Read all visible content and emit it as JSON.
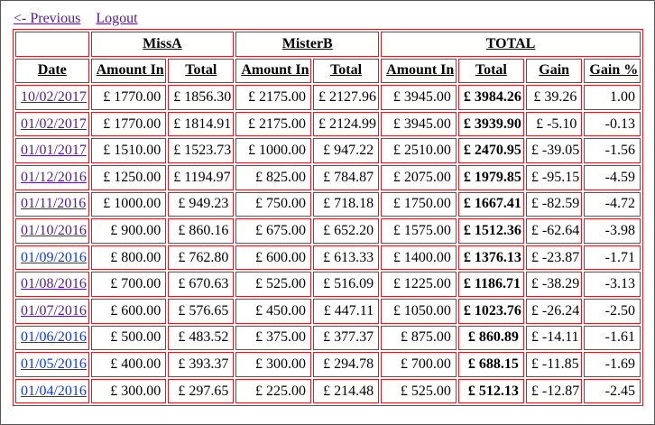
{
  "nav": {
    "previous": "<- Previous",
    "logout": "Logout"
  },
  "groups": {
    "missa": "MissA",
    "misterb": "MisterB",
    "total": "TOTAL"
  },
  "headers": {
    "date": "Date",
    "missa_amount": "Amount In",
    "missa_total": "Total",
    "misterb_amount": "Amount In",
    "misterb_total": "Total",
    "total_amount": "Amount In",
    "total_total": "Total",
    "gain": "Gain",
    "gain_pct": "Gain %"
  },
  "colors": {
    "border": "#e0181f",
    "link_visited": "#551a8b",
    "link_unvisited": "#0b3adf"
  },
  "rows": [
    {
      "date": "10/02/2017",
      "visited": true,
      "a_in": "£ 1770.00",
      "a_tot": "£ 1856.30",
      "b_in": "£ 2175.00",
      "b_tot": "£ 2127.96",
      "t_in": "£ 3945.00",
      "t_tot": "£ 3984.26",
      "gain": "£ 39.26",
      "pct": "1.00"
    },
    {
      "date": "01/02/2017",
      "visited": true,
      "a_in": "£ 1770.00",
      "a_tot": "£ 1814.91",
      "b_in": "£ 2175.00",
      "b_tot": "£ 2124.99",
      "t_in": "£ 3945.00",
      "t_tot": "£ 3939.90",
      "gain": "£ -5.10",
      "pct": "-0.13"
    },
    {
      "date": "01/01/2017",
      "visited": true,
      "a_in": "£ 1510.00",
      "a_tot": "£ 1523.73",
      "b_in": "£ 1000.00",
      "b_tot": "£ 947.22",
      "t_in": "£ 2510.00",
      "t_tot": "£ 2470.95",
      "gain": "£ -39.05",
      "pct": "-1.56"
    },
    {
      "date": "01/12/2016",
      "visited": true,
      "a_in": "£ 1250.00",
      "a_tot": "£ 1194.97",
      "b_in": "£ 825.00",
      "b_tot": "£ 784.87",
      "t_in": "£ 2075.00",
      "t_tot": "£ 1979.85",
      "gain": "£ -95.15",
      "pct": "-4.59"
    },
    {
      "date": "01/11/2016",
      "visited": true,
      "a_in": "£ 1000.00",
      "a_tot": "£ 949.23",
      "b_in": "£ 750.00",
      "b_tot": "£ 718.18",
      "t_in": "£ 1750.00",
      "t_tot": "£ 1667.41",
      "gain": "£ -82.59",
      "pct": "-4.72"
    },
    {
      "date": "01/10/2016",
      "visited": true,
      "a_in": "£ 900.00",
      "a_tot": "£ 860.16",
      "b_in": "£ 675.00",
      "b_tot": "£ 652.20",
      "t_in": "£ 1575.00",
      "t_tot": "£ 1512.36",
      "gain": "£ -62.64",
      "pct": "-3.98"
    },
    {
      "date": "01/09/2016",
      "visited": false,
      "a_in": "£ 800.00",
      "a_tot": "£ 762.80",
      "b_in": "£ 600.00",
      "b_tot": "£ 613.33",
      "t_in": "£ 1400.00",
      "t_tot": "£ 1376.13",
      "gain": "£ -23.87",
      "pct": "-1.71"
    },
    {
      "date": "01/08/2016",
      "visited": true,
      "a_in": "£ 700.00",
      "a_tot": "£ 670.63",
      "b_in": "£ 525.00",
      "b_tot": "£ 516.09",
      "t_in": "£ 1225.00",
      "t_tot": "£ 1186.71",
      "gain": "£ -38.29",
      "pct": "-3.13"
    },
    {
      "date": "01/07/2016",
      "visited": true,
      "a_in": "£ 600.00",
      "a_tot": "£ 576.65",
      "b_in": "£ 450.00",
      "b_tot": "£ 447.11",
      "t_in": "£ 1050.00",
      "t_tot": "£ 1023.76",
      "gain": "£ -26.24",
      "pct": "-2.50"
    },
    {
      "date": "01/06/2016",
      "visited": false,
      "a_in": "£ 500.00",
      "a_tot": "£ 483.52",
      "b_in": "£ 375.00",
      "b_tot": "£ 377.37",
      "t_in": "£ 875.00",
      "t_tot": "£ 860.89",
      "gain": "£ -14.11",
      "pct": "-1.61"
    },
    {
      "date": "01/05/2016",
      "visited": false,
      "a_in": "£ 400.00",
      "a_tot": "£ 393.37",
      "b_in": "£ 300.00",
      "b_tot": "£ 294.78",
      "t_in": "£ 700.00",
      "t_tot": "£ 688.15",
      "gain": "£ -11.85",
      "pct": "-1.69"
    },
    {
      "date": "01/04/2016",
      "visited": false,
      "a_in": "£ 300.00",
      "a_tot": "£ 297.65",
      "b_in": "£ 225.00",
      "b_tot": "£ 214.48",
      "t_in": "£ 525.00",
      "t_tot": "£ 512.13",
      "gain": "£ -12.87",
      "pct": "-2.45"
    }
  ]
}
